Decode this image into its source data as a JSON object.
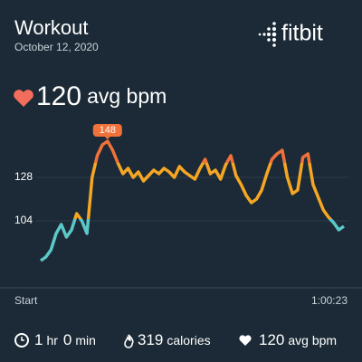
{
  "header": {
    "title": "Workout",
    "date": "October 12, 2020",
    "logo": "fitbit"
  },
  "summary": {
    "value": "120",
    "unit": "avg bpm"
  },
  "chart_data": {
    "type": "line",
    "categories": [
      "Start",
      null,
      null,
      null,
      null,
      null,
      null,
      null,
      null,
      null,
      null,
      null,
      null,
      null,
      null,
      null,
      null,
      null,
      null,
      null,
      null,
      null,
      null,
      null,
      null,
      null,
      null,
      null,
      null,
      null,
      null,
      null,
      null,
      null,
      null,
      null,
      null,
      null,
      null,
      null,
      null,
      null,
      null,
      null,
      null,
      null,
      null,
      null,
      null,
      null,
      null,
      null,
      null,
      null,
      null,
      null,
      null,
      null,
      null,
      "1:00:23"
    ],
    "values": [
      82,
      84,
      88,
      97,
      102,
      95,
      99,
      108,
      104,
      97,
      128,
      140,
      146,
      148,
      143,
      136,
      130,
      133,
      128,
      131,
      126,
      129,
      132,
      130,
      133,
      131,
      128,
      134,
      131,
      129,
      127,
      133,
      138,
      130,
      132,
      127,
      135,
      140,
      129,
      124,
      118,
      114,
      116,
      121,
      130,
      138,
      141,
      143,
      128,
      119,
      121,
      139,
      141,
      124,
      117,
      110,
      106,
      103,
      99,
      101
    ],
    "value_labels": [
      null,
      null,
      null,
      null,
      null,
      null,
      null,
      null,
      null,
      null,
      null,
      null,
      null,
      "148",
      null,
      null,
      null,
      null,
      null,
      null,
      null,
      null,
      null,
      null,
      null,
      null,
      null,
      null,
      null,
      null,
      null,
      null,
      null,
      null,
      null,
      null,
      null,
      null,
      null,
      null,
      null,
      null,
      null,
      null,
      null,
      null,
      null,
      null,
      null,
      null,
      null,
      null,
      null,
      null,
      null,
      null,
      null,
      null,
      null,
      null
    ],
    "ylim": [
      76,
      152
    ],
    "yticks": [
      104,
      128
    ],
    "grid": true,
    "zone_colors": [
      "#5cc8c8",
      "#f5a623",
      "#f0713a"
    ],
    "zone_limits": [
      105,
      136
    ]
  },
  "footer": [
    [
      "1",
      "hr",
      "0",
      "min"
    ],
    [
      "319",
      "calories"
    ],
    [
      "120",
      "avg bpm"
    ]
  ]
}
